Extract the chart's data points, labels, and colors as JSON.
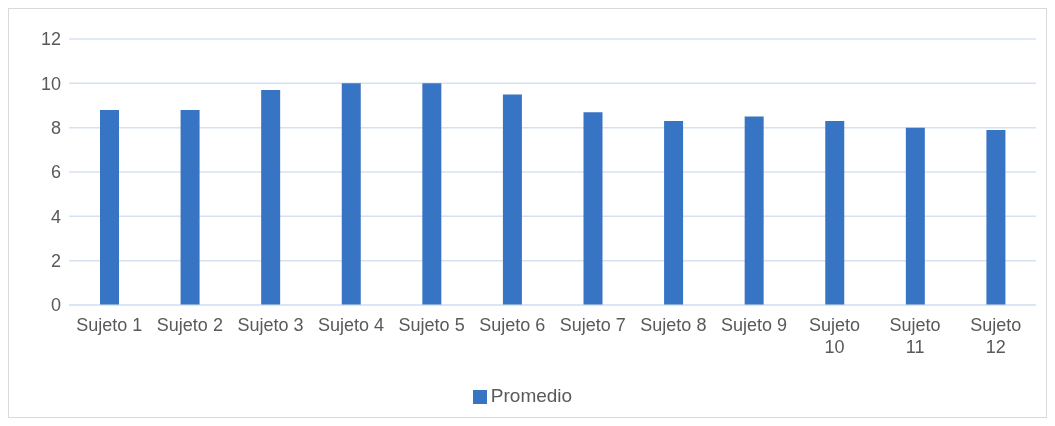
{
  "chart_data": {
    "type": "bar",
    "categories": [
      "Sujeto 1",
      "Sujeto 2",
      "Sujeto 3",
      "Sujeto 4",
      "Sujeto 5",
      "Sujeto 6",
      "Sujeto 7",
      "Sujeto 8",
      "Sujeto 9",
      "Sujeto 10",
      "Sujeto 11",
      "Sujeto 12"
    ],
    "series": [
      {
        "name": "Promedio",
        "color": "#3874c4",
        "values": [
          8.8,
          8.8,
          9.7,
          10,
          10,
          9.5,
          8.7,
          8.3,
          8.5,
          8.3,
          8.0,
          7.9
        ]
      }
    ],
    "ylim": [
      0,
      12
    ],
    "yticks": [
      0,
      2,
      4,
      6,
      8,
      10,
      12
    ],
    "grid": "y",
    "legend": "bottom"
  }
}
